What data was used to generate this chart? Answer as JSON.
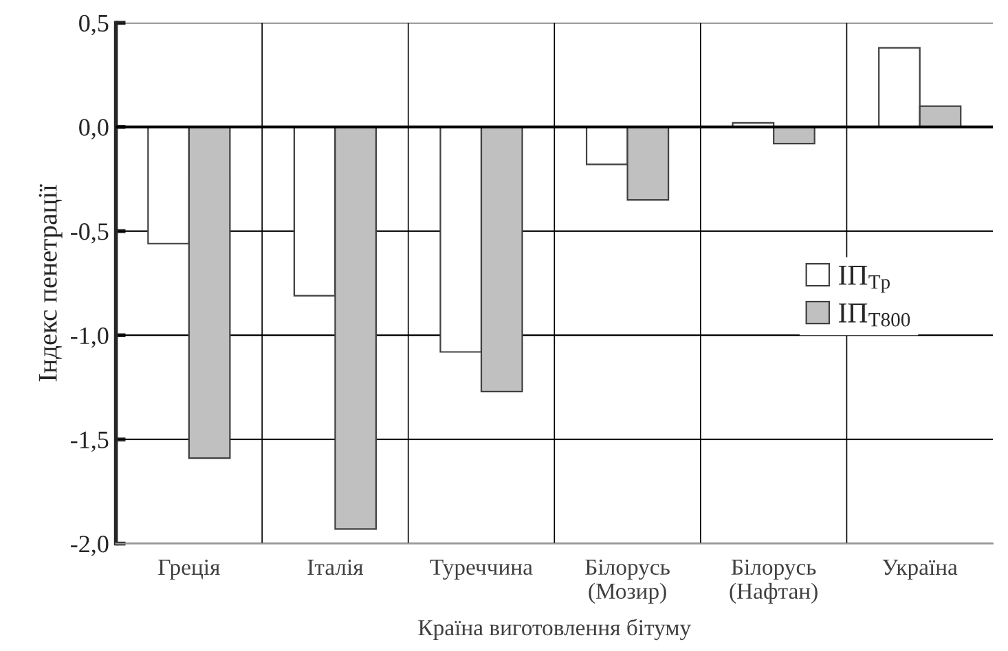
{
  "chart_data": {
    "type": "bar",
    "xlabel": "Країна виготовлення бітуму",
    "ylabel": "Індекс пенетрації",
    "categories": [
      "Греція",
      "Італія",
      "Туреччина",
      "Білорусь\n(Мозир)",
      "Білорусь\n(Нафтан)",
      "Україна"
    ],
    "series": [
      {
        "name": "ІП$_{Тр}$",
        "color": "#ffffff",
        "values": [
          -0.56,
          -0.81,
          -1.08,
          -0.18,
          0.02,
          0.38
        ]
      },
      {
        "name": "ІП$_{Т800}$",
        "color": "#c0c0c0",
        "values": [
          -1.59,
          -1.93,
          -1.27,
          -0.35,
          -0.08,
          0.1
        ]
      }
    ],
    "ylim": [
      -2.0,
      0.5
    ],
    "yticks": [
      {
        "value": -2.0,
        "label": "-2,0"
      },
      {
        "value": -1.5,
        "label": "-1,5"
      },
      {
        "value": -1.0,
        "label": "-1,0"
      },
      {
        "value": -0.5,
        "label": "-0,5"
      },
      {
        "value": 0.0,
        "label": "0,0"
      },
      {
        "value": 0.5,
        "label": "0,5"
      }
    ],
    "grid": true,
    "legend": "right"
  }
}
